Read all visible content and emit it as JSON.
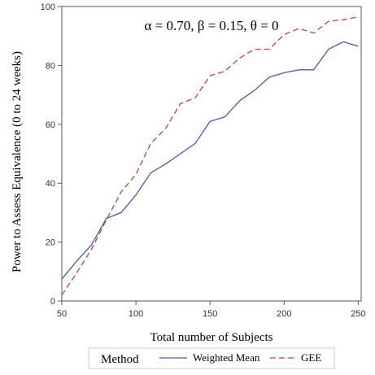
{
  "chart_data": {
    "type": "line",
    "annotation": "α = 0.70, β = 0.15, θ = 0",
    "xlabel": "Total number of Subjects",
    "ylabel": "Power to Assess Equivalence (0 to 24 weeks)",
    "xlim": [
      50,
      252
    ],
    "ylim": [
      0,
      100
    ],
    "xticks": [
      50,
      100,
      150,
      200,
      250
    ],
    "yticks": [
      0,
      20,
      40,
      60,
      80,
      100
    ],
    "grid": false,
    "legend": {
      "title": "Method",
      "placement": "bottom"
    },
    "x": [
      50,
      60,
      70,
      80,
      90,
      100,
      110,
      120,
      130,
      140,
      150,
      160,
      170,
      180,
      190,
      200,
      210,
      220,
      230,
      240,
      250
    ],
    "series": [
      {
        "name": "Weighted Mean",
        "color": "#4a5aa0",
        "dash": "solid",
        "values": [
          7.5,
          13.5,
          19,
          28,
          30,
          36,
          43.5,
          46.5,
          50,
          53.5,
          61,
          62.5,
          68,
          71.5,
          76,
          77.5,
          78.5,
          78.5,
          85.5,
          88,
          86.5
        ]
      },
      {
        "name": "GEE",
        "color": "#b34545",
        "dash": "dashed",
        "values": [
          2,
          9.5,
          17.5,
          27.5,
          37,
          43,
          53.5,
          58.5,
          67,
          69,
          76.5,
          78,
          82.5,
          85.5,
          85.5,
          90.5,
          92.5,
          91,
          95,
          95.5,
          96.5
        ]
      }
    ]
  }
}
